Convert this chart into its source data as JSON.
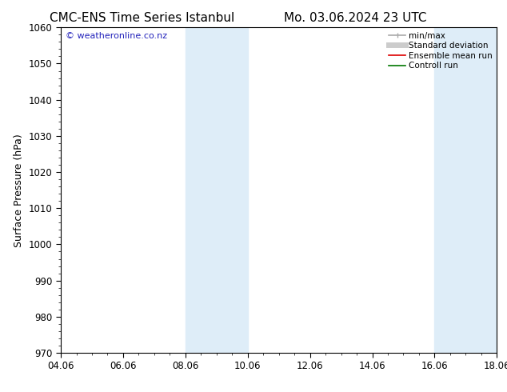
{
  "title_left": "CMC-ENS Time Series Istanbul",
  "title_right": "Mo. 03.06.2024 23 UTC",
  "ylabel": "Surface Pressure (hPa)",
  "xlabel": "",
  "ylim": [
    970,
    1060
  ],
  "yticks": [
    970,
    980,
    990,
    1000,
    1010,
    1020,
    1030,
    1040,
    1050,
    1060
  ],
  "xlim_min": 0,
  "xlim_max": 14,
  "xtick_labels": [
    "04.06",
    "06.06",
    "08.06",
    "10.06",
    "12.06",
    "14.06",
    "16.06",
    "18.06"
  ],
  "xtick_positions": [
    0,
    2,
    4,
    6,
    8,
    10,
    12,
    14
  ],
  "shaded_bands": [
    {
      "x_start": 4,
      "x_end": 6
    },
    {
      "x_start": 12,
      "x_end": 14
    }
  ],
  "shaded_color": "#deedf8",
  "watermark_text": "© weatheronline.co.nz",
  "watermark_color": "#2222bb",
  "background_color": "#ffffff",
  "legend_items": [
    {
      "label": "min/max",
      "color": "#aaaaaa",
      "lw": 1.2
    },
    {
      "label": "Standard deviation",
      "color": "#cccccc",
      "lw": 5
    },
    {
      "label": "Ensemble mean run",
      "color": "#dd0000",
      "lw": 1.2
    },
    {
      "label": "Controll run",
      "color": "#007700",
      "lw": 1.2
    }
  ],
  "title_fontsize": 11,
  "axis_label_fontsize": 9,
  "tick_fontsize": 8.5,
  "watermark_fontsize": 8,
  "legend_fontsize": 7.5
}
